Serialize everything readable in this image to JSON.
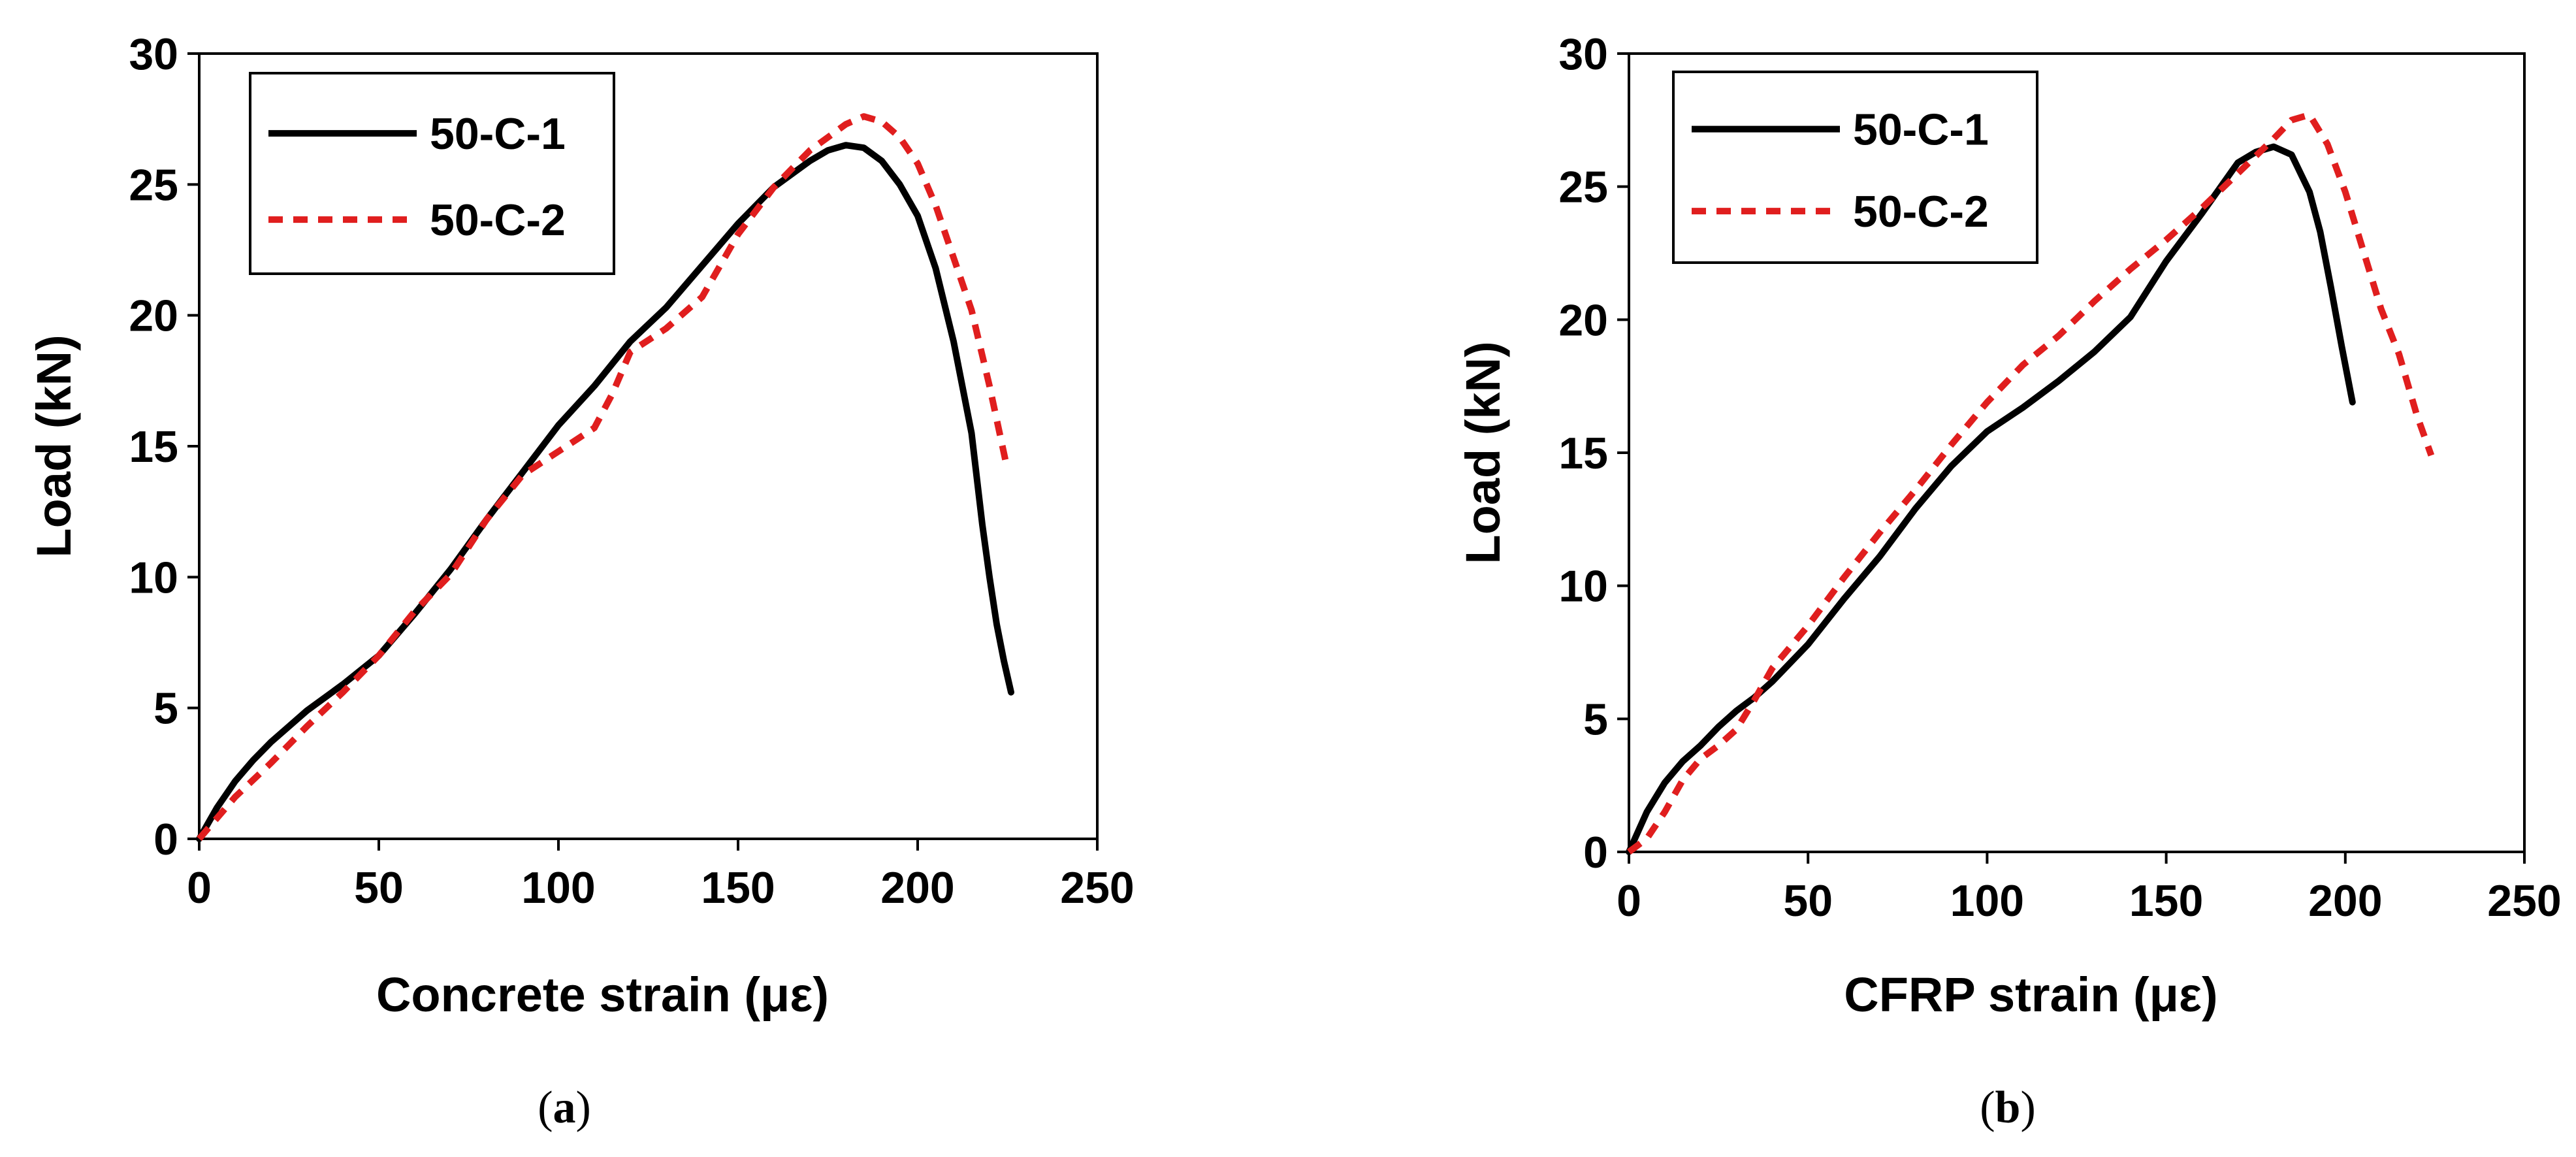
{
  "chart_data": [
    {
      "type": "line",
      "caption": {
        "open": "(",
        "letter": "a",
        "close": ")"
      },
      "xlabel": "Concrete strain (με)",
      "ylabel": "Load (kN)",
      "xlim": [
        0,
        250
      ],
      "ylim": [
        0,
        30
      ],
      "xticks": [
        "0",
        "50",
        "100",
        "150",
        "200",
        "250"
      ],
      "yticks": [
        "0",
        "5",
        "10",
        "15",
        "20",
        "25",
        "30"
      ],
      "grid": false,
      "legend_position": "top-left",
      "series": [
        {
          "name": "50-C-1",
          "color": "#000000",
          "style": "solid",
          "x": [
            0,
            5,
            10,
            15,
            20,
            25,
            30,
            40,
            50,
            60,
            70,
            80,
            90,
            100,
            110,
            120,
            130,
            140,
            150,
            160,
            170,
            175,
            180,
            185,
            190,
            195,
            200,
            205,
            210,
            215,
            218,
            220,
            222,
            224,
            226
          ],
          "y": [
            0,
            1.2,
            2.2,
            3.0,
            3.7,
            4.3,
            4.9,
            5.9,
            7.0,
            8.6,
            10.3,
            12.2,
            14.0,
            15.8,
            17.3,
            19.0,
            20.3,
            21.9,
            23.5,
            24.9,
            25.9,
            26.3,
            26.5,
            26.4,
            25.9,
            25.0,
            23.8,
            21.8,
            19.0,
            15.5,
            12.0,
            10.0,
            8.2,
            6.8,
            5.6
          ]
        },
        {
          "name": "50-C-2",
          "color": "#e01e1e",
          "style": "dashed",
          "x": [
            0,
            10,
            20,
            30,
            40,
            50,
            60,
            70,
            80,
            90,
            100,
            110,
            115,
            120,
            130,
            140,
            150,
            160,
            170,
            180,
            185,
            190,
            195,
            200,
            205,
            210,
            215,
            220,
            225
          ],
          "y": [
            0,
            1.6,
            2.9,
            4.3,
            5.6,
            7.0,
            8.7,
            10.1,
            12.2,
            13.9,
            14.8,
            15.7,
            17.0,
            18.6,
            19.5,
            20.7,
            23.1,
            24.9,
            26.3,
            27.3,
            27.6,
            27.4,
            26.8,
            25.8,
            24.2,
            22.2,
            20.2,
            17.3,
            14.1
          ]
        }
      ]
    },
    {
      "type": "line",
      "caption": {
        "open": "(",
        "letter": "b",
        "close": ")"
      },
      "xlabel": "CFRP strain (με)",
      "ylabel": "Load (kN)",
      "xlim": [
        0,
        250
      ],
      "ylim": [
        0,
        30
      ],
      "xticks": [
        "0",
        "50",
        "100",
        "150",
        "200",
        "250"
      ],
      "yticks": [
        "0",
        "5",
        "10",
        "15",
        "20",
        "25",
        "30"
      ],
      "grid": false,
      "legend_position": "top-left",
      "series": [
        {
          "name": "50-C-1",
          "color": "#000000",
          "style": "solid",
          "x": [
            0,
            5,
            10,
            15,
            20,
            25,
            30,
            35,
            40,
            50,
            60,
            70,
            80,
            90,
            100,
            110,
            120,
            130,
            140,
            150,
            160,
            170,
            175,
            180,
            185,
            190,
            193,
            196,
            199,
            202
          ],
          "y": [
            0,
            1.5,
            2.6,
            3.4,
            4.0,
            4.7,
            5.3,
            5.8,
            6.4,
            7.8,
            9.5,
            11.1,
            12.9,
            14.5,
            15.8,
            16.7,
            17.7,
            18.8,
            20.1,
            22.2,
            24.0,
            25.9,
            26.3,
            26.5,
            26.2,
            24.8,
            23.3,
            21.2,
            19.0,
            16.9
          ]
        },
        {
          "name": "50-C-2",
          "color": "#e01e1e",
          "style": "dashed",
          "x": [
            0,
            5,
            10,
            15,
            20,
            25,
            30,
            35,
            40,
            50,
            60,
            70,
            80,
            90,
            100,
            110,
            120,
            130,
            140,
            150,
            160,
            170,
            180,
            185,
            190,
            195,
            200,
            205,
            210,
            215,
            220,
            224
          ],
          "y": [
            0,
            0.5,
            1.5,
            2.7,
            3.5,
            4.0,
            4.6,
            5.7,
            6.9,
            8.5,
            10.3,
            12.0,
            13.6,
            15.3,
            16.9,
            18.3,
            19.4,
            20.7,
            21.9,
            23.0,
            24.2,
            25.5,
            26.8,
            27.5,
            27.7,
            26.6,
            24.8,
            22.6,
            20.4,
            18.7,
            16.4,
            14.9
          ]
        }
      ]
    }
  ]
}
